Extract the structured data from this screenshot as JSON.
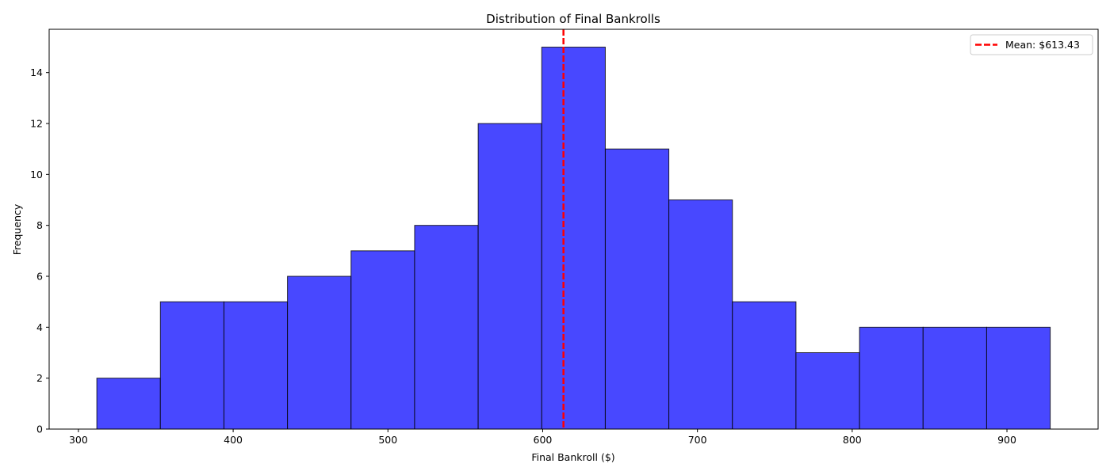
{
  "chart_data": {
    "type": "bar",
    "title": "Distribution of Final Bankrolls",
    "xlabel": "Final Bankroll ($)",
    "ylabel": "Frequency",
    "xlim": [
      281.1,
      958.9
    ],
    "ylim": [
      0,
      15.7
    ],
    "xticks": [
      300,
      400,
      500,
      600,
      700,
      800,
      900
    ],
    "yticks": [
      0,
      2,
      4,
      6,
      8,
      10,
      12,
      14
    ],
    "bin_start": 311.9,
    "bin_width": 41.07,
    "values": [
      2,
      5,
      5,
      6,
      7,
      8,
      12,
      15,
      11,
      9,
      5,
      3,
      4,
      4,
      4
    ],
    "bar_color": "#4848ff",
    "edge_color": "#000000",
    "mean": {
      "value": 613.43,
      "label": "Mean: $613.43",
      "color": "#ff0000",
      "style": "dashed"
    },
    "legend": {
      "placement": "top-right"
    },
    "grid": false
  }
}
